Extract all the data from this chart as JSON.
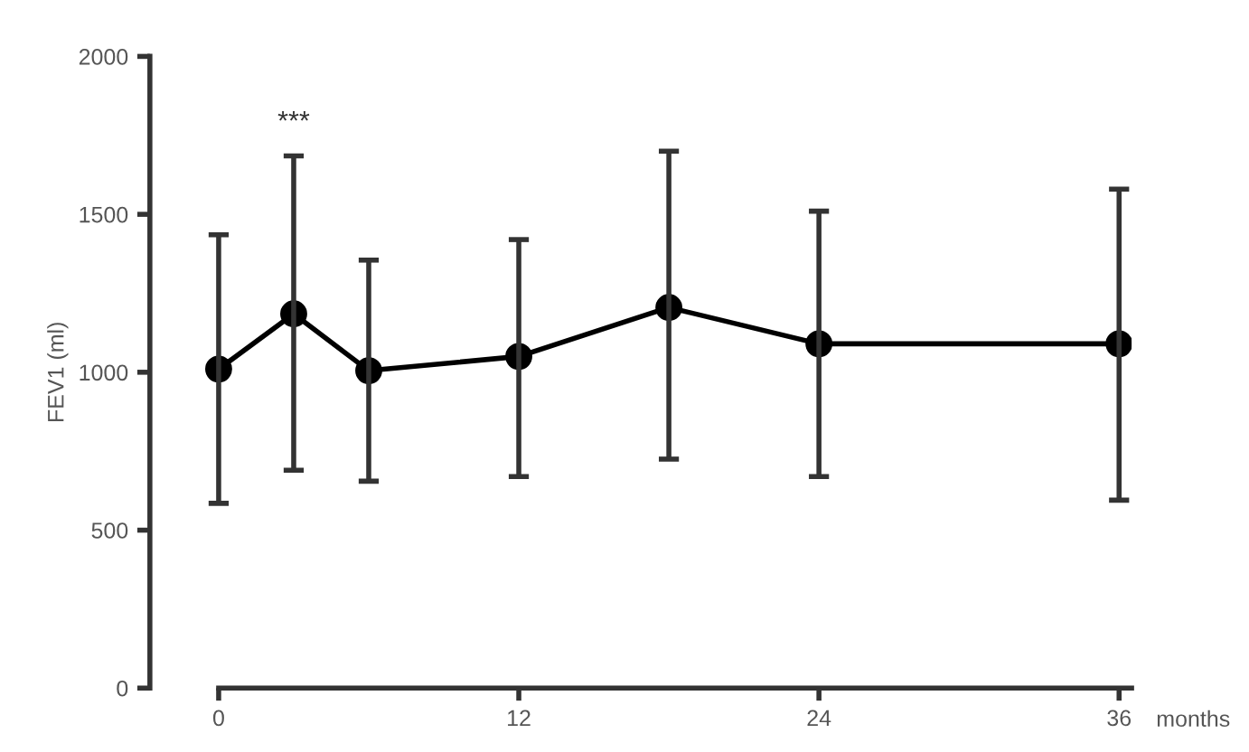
{
  "chart_data": {
    "type": "line",
    "xlabel": "months",
    "ylabel": "FEV1 (ml)",
    "x": [
      0,
      3,
      6,
      12,
      18,
      24,
      36
    ],
    "series": [
      {
        "color": "#000000",
        "values": [
          1010,
          1185,
          1005,
          1050,
          1205,
          1090,
          1090
        ],
        "errors": [
          [
            585,
            1435
          ],
          [
            690,
            1685
          ],
          [
            655,
            1355
          ],
          [
            670,
            1420
          ],
          [
            725,
            1700
          ],
          [
            670,
            1510
          ],
          [
            595,
            1580
          ]
        ]
      }
    ],
    "xlim": [
      -2.75,
      36.5
    ],
    "ylim": [
      0,
      2000
    ],
    "xticks": [
      0,
      12,
      24,
      36
    ],
    "yticks": [
      0,
      500,
      1000,
      1500,
      2000
    ],
    "annotations": [
      {
        "text": "***",
        "x": 3,
        "y": 1685
      }
    ],
    "marker": "circle",
    "line_style": "solid",
    "grid": false,
    "legend": false
  }
}
